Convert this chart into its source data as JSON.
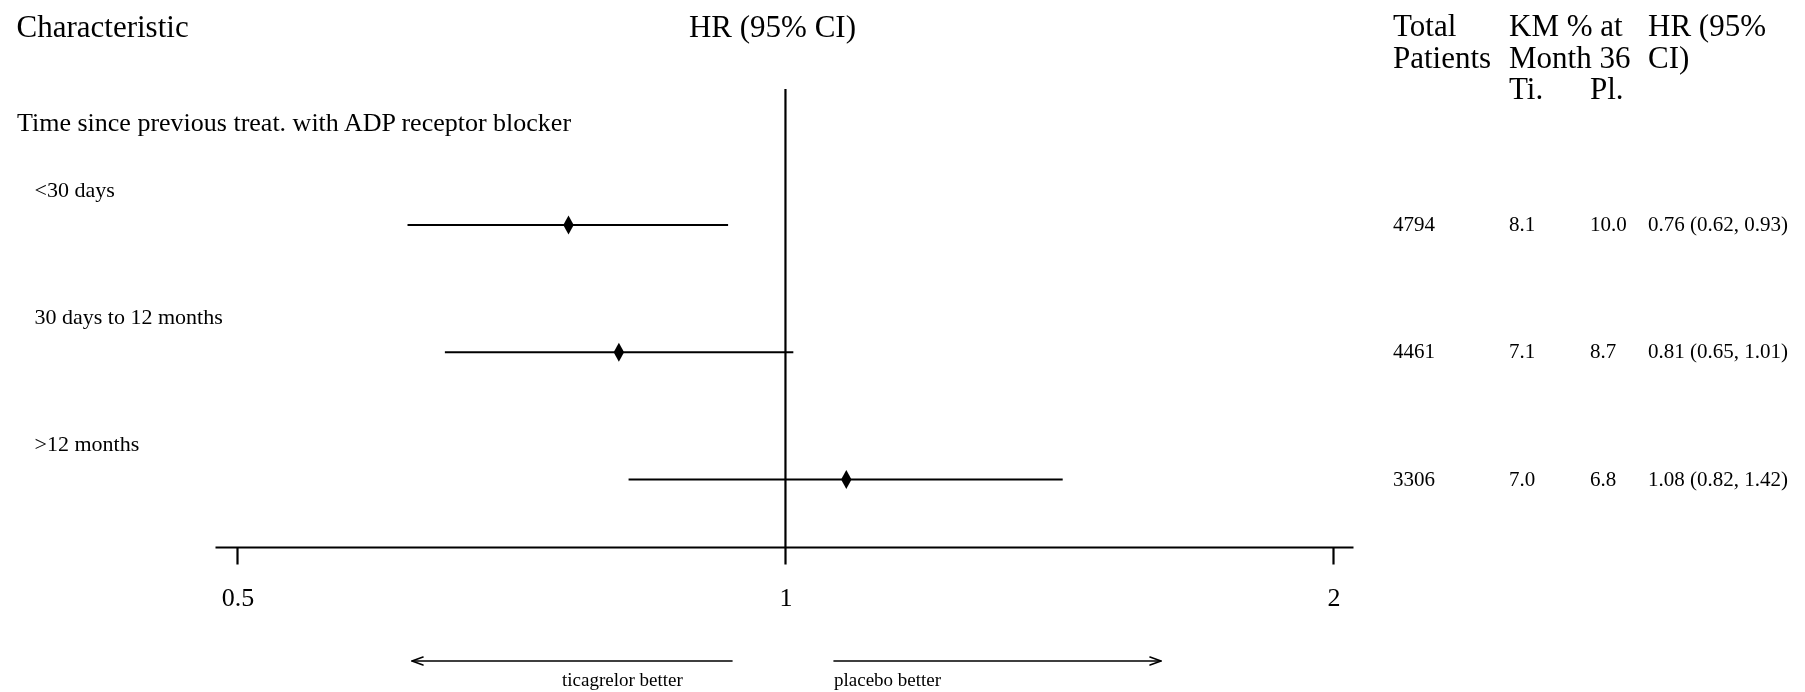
{
  "chart_data": {
    "type": "scatter",
    "orientation": "horizontal",
    "xlabel": "HR (95% CI)",
    "ylabel": "Characteristic",
    "categories": [
      "<30 days",
      "30 days to 12 months",
      ">12 months"
    ],
    "values": [
      0.76,
      0.81,
      1.08
    ],
    "errors": [
      [
        0.62,
        0.93
      ],
      [
        0.65,
        1.01
      ],
      [
        0.82,
        1.42
      ]
    ],
    "value_labels": [
      "0.76 (0.62, 0.93)",
      "0.81 (0.65, 1.01)",
      "1.08 (0.82, 1.42)"
    ],
    "color": "#000000",
    "marker": "diamond",
    "log": "x",
    "xlim": [
      0.486,
      2.05
    ],
    "xticks": [
      0.5,
      1,
      2
    ],
    "ref_lines": [
      {
        "axis": "x",
        "value": 1
      }
    ],
    "annotations": [
      "Time since previous treat. with ADP receptor blocker",
      "Total Patients",
      "KM % at Month 36",
      "Ti.",
      "Pl.",
      "HR (95% CI)",
      "4794",
      "8.1",
      "10.0",
      "4461",
      "7.1",
      "8.7",
      "3306",
      "7.0",
      "6.8",
      "ticagrelor better",
      "placebo better"
    ]
  }
}
